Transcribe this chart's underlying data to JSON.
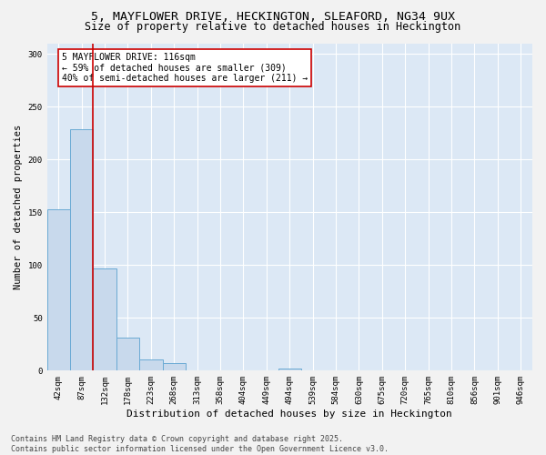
{
  "title_line1": "5, MAYFLOWER DRIVE, HECKINGTON, SLEAFORD, NG34 9UX",
  "title_line2": "Size of property relative to detached houses in Heckington",
  "xlabel": "Distribution of detached houses by size in Heckington",
  "ylabel": "Number of detached properties",
  "categories": [
    "42sqm",
    "87sqm",
    "132sqm",
    "178sqm",
    "223sqm",
    "268sqm",
    "313sqm",
    "358sqm",
    "404sqm",
    "449sqm",
    "494sqm",
    "539sqm",
    "584sqm",
    "630sqm",
    "675sqm",
    "720sqm",
    "765sqm",
    "810sqm",
    "856sqm",
    "901sqm",
    "946sqm"
  ],
  "values": [
    153,
    229,
    97,
    31,
    11,
    7,
    0,
    0,
    0,
    0,
    2,
    0,
    0,
    0,
    0,
    0,
    0,
    0,
    0,
    0,
    0
  ],
  "bar_color": "#c8d9ec",
  "bar_edge_color": "#6aaad4",
  "vline_color": "#cc0000",
  "annotation_text": "5 MAYFLOWER DRIVE: 116sqm\n← 59% of detached houses are smaller (309)\n40% of semi-detached houses are larger (211) →",
  "annotation_box_color": "#ffffff",
  "annotation_box_edge": "#cc0000",
  "title_fontsize1": 9.5,
  "title_fontsize2": 8.5,
  "xlabel_fontsize": 8,
  "ylabel_fontsize": 7.5,
  "annotation_fontsize": 7,
  "tick_fontsize": 6.5,
  "ylim": [
    0,
    310
  ],
  "yticks": [
    0,
    50,
    100,
    150,
    200,
    250,
    300
  ],
  "plot_bg": "#dce8f5",
  "fig_bg": "#f2f2f2",
  "grid_color": "#ffffff",
  "footer_line1": "Contains HM Land Registry data © Crown copyright and database right 2025.",
  "footer_line2": "Contains public sector information licensed under the Open Government Licence v3.0.",
  "footer_fontsize": 6
}
